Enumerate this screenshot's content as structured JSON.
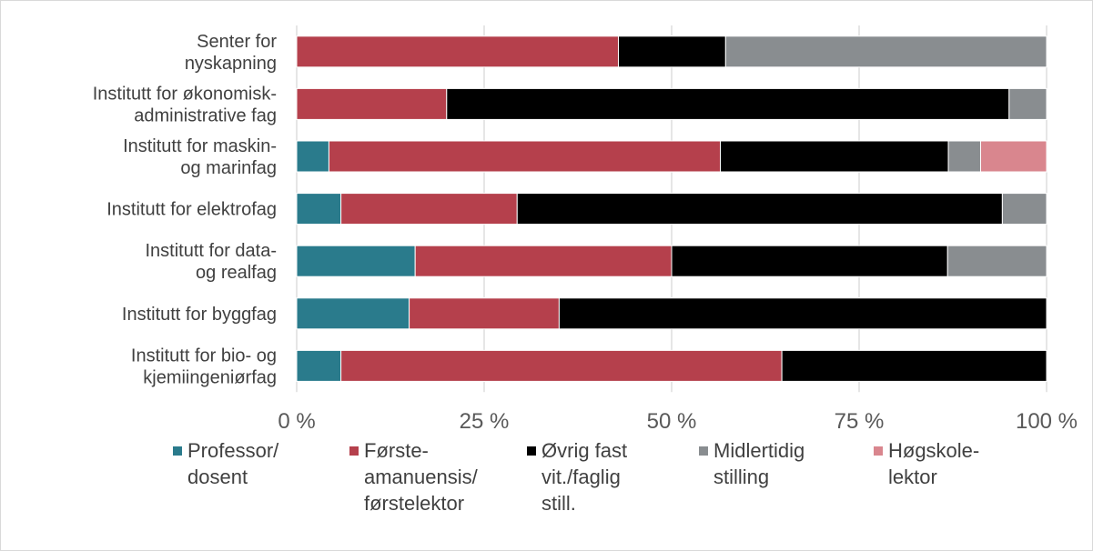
{
  "chart_data": {
    "type": "bar",
    "orientation": "horizontal",
    "stacked": true,
    "categories": [
      [
        "Senter for",
        "nyskapning"
      ],
      [
        "Institutt for økonomisk-",
        "administrative fag"
      ],
      [
        "Institutt for maskin-",
        "og marinfag"
      ],
      [
        "Institutt for elektrofag"
      ],
      [
        "Institutt for data-",
        "og realfag"
      ],
      [
        "Institutt for byggfag"
      ],
      [
        "Institutt for bio- og",
        "kjemiingeniørfag"
      ]
    ],
    "series": [
      {
        "name": [
          "Professor/",
          "dosent"
        ],
        "color": "#2a7b8c",
        "values": [
          0,
          0,
          4.3,
          5.9,
          15.8,
          15.0,
          5.9
        ]
      },
      {
        "name": [
          "Første-",
          "amanuensis/",
          "førstelektor"
        ],
        "color": "#b5404c",
        "values": [
          42.9,
          20.0,
          52.2,
          23.5,
          34.2,
          20.0,
          58.8
        ]
      },
      {
        "name": [
          "Øvrig fast",
          "vit./faglig",
          "still."
        ],
        "color": "#000000",
        "values": [
          14.3,
          75.0,
          30.4,
          64.7,
          36.8,
          65.0,
          35.3
        ]
      },
      {
        "name": [
          "Midlertidig",
          "stilling"
        ],
        "color": "#898d90",
        "values": [
          42.8,
          5.0,
          4.3,
          5.9,
          13.2,
          0,
          0
        ]
      },
      {
        "name": [
          "Høgskole-",
          "lektor"
        ],
        "color": "#d9868e",
        "values": [
          0,
          0,
          8.8,
          0,
          0,
          0,
          0
        ]
      }
    ],
    "xlim": [
      0,
      100
    ],
    "xticks": [
      0,
      25,
      50,
      75,
      100
    ],
    "xtick_labels": [
      "0 %",
      "25 %",
      "50 %",
      "75 %",
      "100 %"
    ],
    "grid": "vertical",
    "legend_position": "bottom",
    "title": "",
    "xlabel": "",
    "ylabel": ""
  },
  "colors": {
    "grid": "#d9d9d9",
    "frame": "#d9d9d9",
    "text": "#404040"
  }
}
